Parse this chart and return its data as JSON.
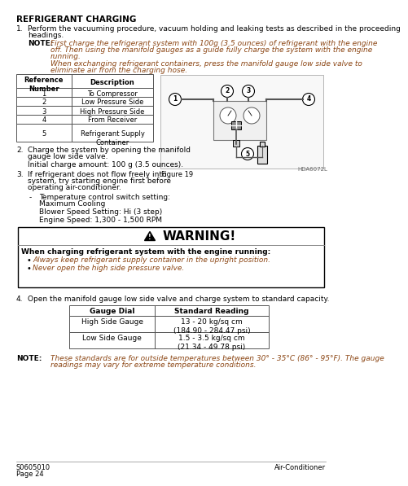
{
  "title": "REFRIGERANT CHARGING",
  "bg_color": "#ffffff",
  "text_color": "#000000",
  "italic_color": "#8B4513",
  "section1_num": "1.",
  "section1_text": "Perform the vacuuming procedure, vacuum holding and leaking tests as described in the proceeding\nheadings.",
  "note_label": "NOTE:",
  "note_text1": "First charge the refrigerant system with 100g (3.5 ounces) of refrigerant with the engine\noff. Then using the manifold gauges as a guide fully charge the system with the engine\nrunning.",
  "note_text2": "When exchanging refrigerant containers, press the manifold gauge low side valve to\neliminate air from the charging hose.",
  "table_headers": [
    "Reference\nNumber",
    "Description"
  ],
  "table_rows": [
    [
      "1",
      "To Compressor"
    ],
    [
      "2",
      "Low Pressure Side"
    ],
    [
      "3",
      "High Pressure Side"
    ],
    [
      "4",
      "From Receiver"
    ],
    [
      "5",
      "Refrigerant Supply\nContainer"
    ]
  ],
  "figure_label": "Figure 19",
  "figure_code": "HDA6072L",
  "section2_num": "2.",
  "section2_text": "Charge the system by opening the manifold\ngauge low side valve.",
  "section2_sub": "Initial charge amount: 100 g (3.5 ounces).",
  "section3_num": "3.",
  "section3_text": "If refrigerant does not flow freely into\nsystem, try starting engine first before\noperating air-conditioner.",
  "bullet_items": [
    "Temperature control switch setting:\nMaximum Cooling",
    "Blower Speed Setting: Hi (3 step)",
    "Engine Speed: 1,300 - 1,500 RPM"
  ],
  "warning_title": "WARNING!",
  "warning_context": "When charging refrigerant system with the engine running:",
  "warning_bullets": [
    "Always keep refrigerant supply container in the upright position.",
    "Never open the high side pressure valve."
  ],
  "section4_num": "4.",
  "section4_text": "Open the manifold gauge low side valve and charge system to standard capacity.",
  "gauge_table_headers": [
    "Gauge Dial",
    "Standard Reading"
  ],
  "gauge_rows": [
    [
      "High Side Gauge",
      "13 - 20 kg/sq cm\n(184.90 - 284.47 psi)"
    ],
    [
      "Low Side Gauge",
      "1.5 - 3.5 kg/sq cm\n(21.34 - 49.78 psi)"
    ]
  ],
  "note2_label": "NOTE:",
  "note2_text": "These standards are for outside temperatures between 30° - 35°C (86° - 95°F). The gauge\nreadings may vary for extreme temperature conditions.",
  "footer_left": "S0605010\nPage 24",
  "footer_right": "Air-Conditioner"
}
